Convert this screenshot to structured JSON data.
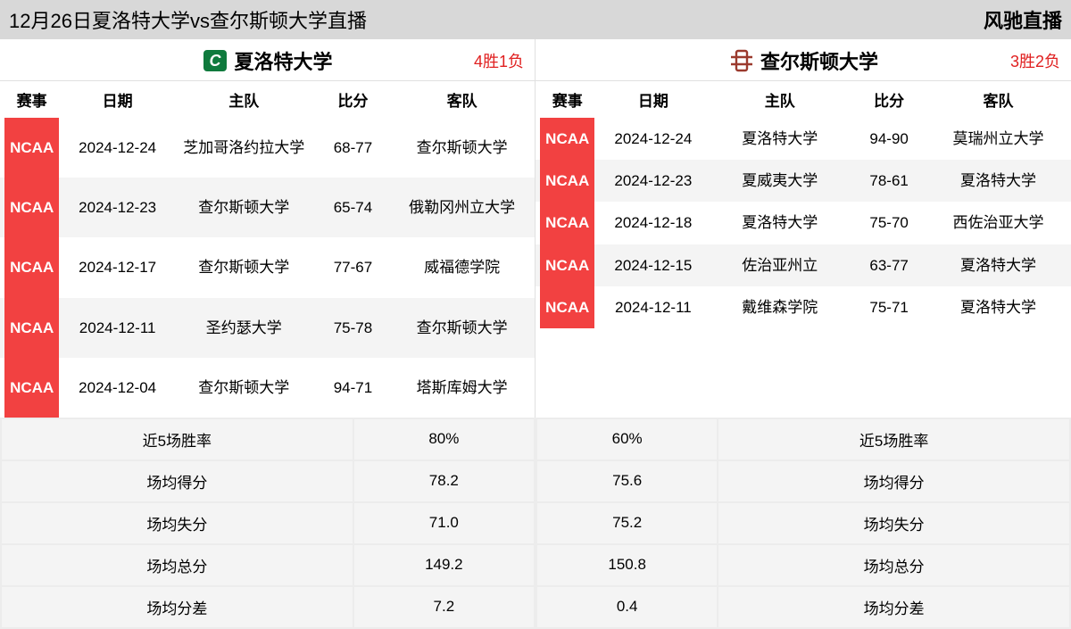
{
  "header": {
    "title": "12月26日夏洛特大学vs查尔斯顿大学直播",
    "brand": "风驰直播"
  },
  "columns": {
    "league": "赛事",
    "date": "日期",
    "home": "主队",
    "score": "比分",
    "away": "客队"
  },
  "colors": {
    "tag_bg": "#f24141",
    "tag_fg": "#ffffff",
    "record_fg": "#e02020",
    "row_alt_bg": "#f4f4f4",
    "row_bg": "#ffffff",
    "page_bg": "#d8d8d8",
    "border": "#ececec"
  },
  "left": {
    "team_name": "夏洛特大学",
    "record": "4胜1负",
    "logo_bg": "#0f7a3d",
    "logo_letter": "C",
    "games": [
      {
        "league": "NCAA",
        "date": "2024-12-24",
        "home": "芝加哥洛约拉大学",
        "score": "68-77",
        "away": "查尔斯顿大学"
      },
      {
        "league": "NCAA",
        "date": "2024-12-23",
        "home": "查尔斯顿大学",
        "score": "65-74",
        "away": "俄勒冈州立大学"
      },
      {
        "league": "NCAA",
        "date": "2024-12-17",
        "home": "查尔斯顿大学",
        "score": "77-67",
        "away": "威福德学院"
      },
      {
        "league": "NCAA",
        "date": "2024-12-11",
        "home": "圣约瑟大学",
        "score": "75-78",
        "away": "查尔斯顿大学"
      },
      {
        "league": "NCAA",
        "date": "2024-12-04",
        "home": "查尔斯顿大学",
        "score": "94-71",
        "away": "塔斯库姆大学"
      }
    ],
    "stats": [
      {
        "label": "近5场胜率",
        "value": "80%"
      },
      {
        "label": "场均得分",
        "value": "78.2"
      },
      {
        "label": "场均失分",
        "value": "71.0"
      },
      {
        "label": "场均总分",
        "value": "149.2"
      },
      {
        "label": "场均分差",
        "value": "7.2"
      }
    ]
  },
  "right": {
    "team_name": "查尔斯顿大学",
    "record": "3胜2负",
    "logo_color": "#9b3a2e",
    "games": [
      {
        "league": "NCAA",
        "date": "2024-12-24",
        "home": "夏洛特大学",
        "score": "94-90",
        "away": "莫瑞州立大学"
      },
      {
        "league": "NCAA",
        "date": "2024-12-23",
        "home": "夏威夷大学",
        "score": "78-61",
        "away": "夏洛特大学"
      },
      {
        "league": "NCAA",
        "date": "2024-12-18",
        "home": "夏洛特大学",
        "score": "75-70",
        "away": "西佐治亚大学"
      },
      {
        "league": "NCAA",
        "date": "2024-12-15",
        "home": "佐治亚州立",
        "score": "63-77",
        "away": "夏洛特大学"
      },
      {
        "league": "NCAA",
        "date": "2024-12-11",
        "home": "戴维森学院",
        "score": "75-71",
        "away": "夏洛特大学"
      }
    ],
    "stats": [
      {
        "label": "近5场胜率",
        "value": "60%"
      },
      {
        "label": "场均得分",
        "value": "75.6"
      },
      {
        "label": "场均失分",
        "value": "75.2"
      },
      {
        "label": "场均总分",
        "value": "150.8"
      },
      {
        "label": "场均分差",
        "value": "0.4"
      }
    ]
  }
}
